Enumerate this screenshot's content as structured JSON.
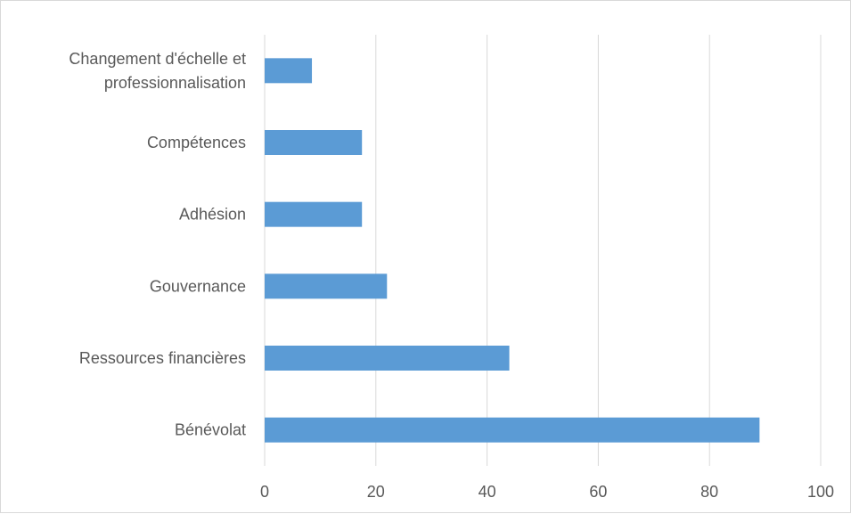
{
  "chart_data": {
    "type": "bar",
    "orientation": "horizontal",
    "categories": [
      [
        "Changement d'échelle et",
        "professionnalisation"
      ],
      [
        "Compétences"
      ],
      [
        "Adhésion"
      ],
      [
        "Gouvernance"
      ],
      [
        "Ressources financières"
      ],
      [
        "Bénévolat"
      ]
    ],
    "values": [
      8.5,
      17.5,
      17.5,
      22,
      44,
      89
    ],
    "xlim": [
      0,
      100
    ],
    "xticks": [
      0,
      20,
      40,
      60,
      80,
      100
    ],
    "grid": true,
    "legend": "none",
    "bar_color": "#5b9bd5",
    "grid_color": "#d9d9d9",
    "text_color": "#595959"
  }
}
